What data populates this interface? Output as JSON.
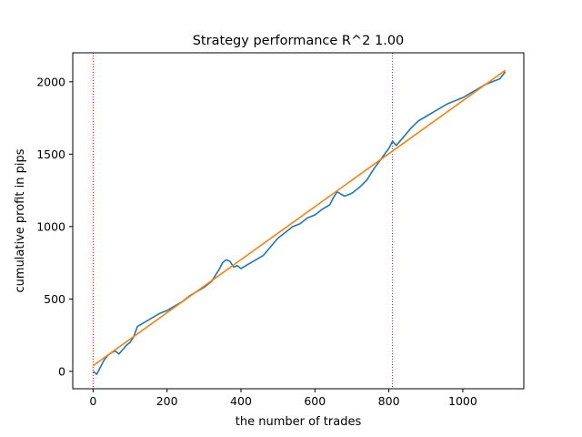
{
  "chart_data": {
    "type": "line",
    "title": "Strategy performance R^2 1.00",
    "xlabel": "the number of trades",
    "ylabel": "cumulative profit in pips",
    "xlim": [
      -55,
      1165
    ],
    "ylim": [
      -120,
      2200
    ],
    "xticks": [
      0,
      200,
      400,
      600,
      800,
      1000
    ],
    "yticks": [
      0,
      500,
      1000,
      1500,
      2000
    ],
    "grid": false,
    "vlines": [
      {
        "x": 0,
        "color": "#ff0000",
        "style": "dotted"
      },
      {
        "x": 810,
        "color": "#7f00bf",
        "style": "dotted"
      }
    ],
    "series": [
      {
        "color": "#1f77b4",
        "x": [
          0,
          10,
          20,
          30,
          40,
          50,
          60,
          70,
          80,
          90,
          100,
          110,
          120,
          140,
          160,
          180,
          200,
          220,
          240,
          260,
          280,
          300,
          320,
          330,
          340,
          350,
          360,
          370,
          380,
          390,
          400,
          420,
          440,
          460,
          480,
          500,
          520,
          540,
          560,
          580,
          600,
          620,
          640,
          650,
          660,
          680,
          700,
          720,
          740,
          760,
          780,
          800,
          810,
          820,
          840,
          860,
          880,
          900,
          920,
          940,
          960,
          980,
          1000,
          1020,
          1040,
          1060,
          1080,
          1100,
          1115
        ],
        "y": [
          0,
          -20,
          30,
          80,
          110,
          130,
          140,
          120,
          150,
          180,
          200,
          240,
          310,
          340,
          370,
          400,
          420,
          450,
          480,
          520,
          550,
          580,
          620,
          660,
          700,
          750,
          770,
          760,
          720,
          730,
          710,
          740,
          770,
          800,
          860,
          920,
          960,
          1000,
          1020,
          1060,
          1080,
          1120,
          1150,
          1200,
          1240,
          1210,
          1230,
          1270,
          1320,
          1400,
          1470,
          1540,
          1590,
          1560,
          1620,
          1680,
          1730,
          1760,
          1790,
          1820,
          1850,
          1870,
          1890,
          1920,
          1950,
          1980,
          2000,
          2020,
          2070
        ]
      },
      {
        "color": "#ff7f0e",
        "x": [
          0,
          1115
        ],
        "y": [
          40,
          2080
        ]
      }
    ]
  }
}
